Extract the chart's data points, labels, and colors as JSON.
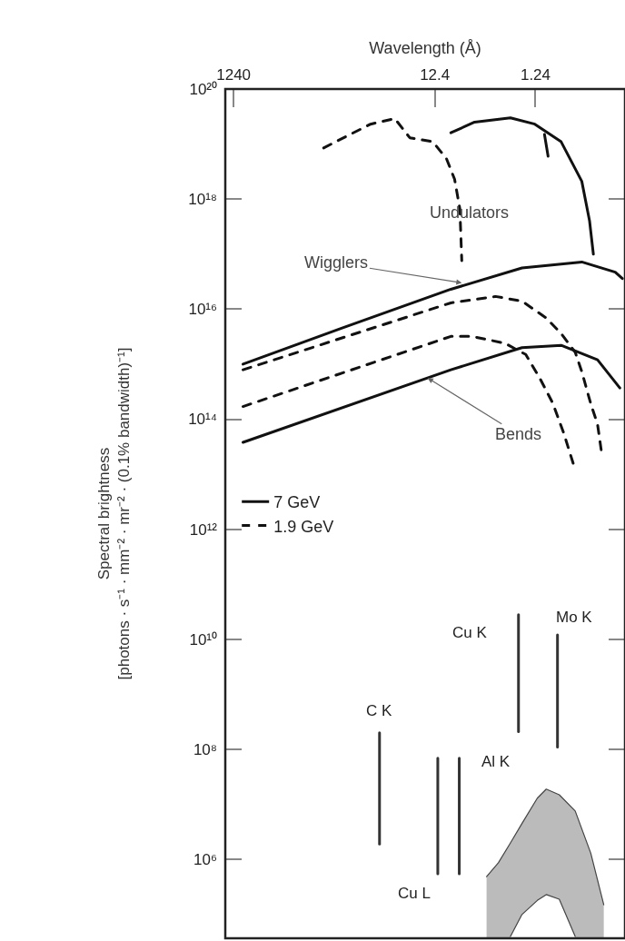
{
  "chart_data": {
    "type": "line",
    "xlabel": "Wavelength (Å)",
    "ylabel": "Spectral brightness\n[photons · s⁻¹ · mm⁻² · mr⁻² · (0.1% bandwidth)⁻¹]",
    "log": "xy",
    "legend": "left",
    "xlim": [
      1500,
      0.16
    ],
    "xticks": [
      1240,
      12.4,
      1.24
    ],
    "ylim": [
      37000.0,
      1e+20
    ],
    "yticks": [
      {
        "value": 1e+20,
        "label": "10²⁰"
      },
      {
        "value": 1e+18,
        "label": "10¹⁸"
      },
      {
        "value": 1e+16,
        "label": "10¹⁶"
      },
      {
        "value": 100000000000000.0,
        "label": "10¹⁴"
      },
      {
        "value": 1000000000000.0,
        "label": "10¹²"
      },
      {
        "value": 10000000000.0,
        "label": "10¹⁰"
      },
      {
        "value": 100000000.0,
        "label": "10⁸"
      },
      {
        "value": 1000000.0,
        "label": "10⁶"
      }
    ],
    "annotations": [
      "Undulators",
      {
        "text": "Wigglers",
        "x": 6.7,
        "y": 3e+16
      },
      {
        "text": "Bends",
        "x": 14.6,
        "y": 560000000000000.0
      }
    ],
    "series": [
      {
        "name": "7 GeV",
        "color": "#111111",
        "line_style": "solid",
        "x": [
          8.6,
          5,
          2.2,
          1.26,
          0.69,
          0.43,
          0.36,
          0.33
        ],
        "values": [
          1.6e+19,
          2.5e+19,
          3e+19,
          2.3e+19,
          1.1e+19,
          2.1e+18,
          4e+17,
          1e+17
        ]
      },
      {
        "color": "#111111",
        "line_style": "solid",
        "x": [
          1.01,
          0.93
        ],
        "values": [
          1.5e+19,
          6e+18
        ]
      },
      {
        "color": "#111111",
        "line_style": "solid",
        "x": [
          1000,
          105,
          8.6,
          1.69,
          0.43,
          0.2,
          0.17
        ],
        "values": [
          1000000000000000.0,
          4500000000000000.0,
          2.3e+16,
          5.6e+16,
          7.2e+16,
          4.7e+16,
          3.6e+16
        ]
      },
      {
        "color": "#111111",
        "line_style": "solid",
        "x": [
          1000,
          8.6,
          1.69,
          0.69,
          0.3,
          0.18
        ],
        "values": [
          38000000000000.0,
          790000000000000.0,
          2000000000000000.0,
          2200000000000000.0,
          1200000000000000.0,
          370000000000000.0
        ]
      },
      {
        "name": "1.9 GeV",
        "color": "#111111",
        "line_style": "dashed",
        "x": [
          158,
          86,
          54,
          31,
          22,
          13,
          9.5,
          7.9,
          7.0,
          6.7
        ],
        "values": [
          8.5e+18,
          1.5e+19,
          2.3e+19,
          2.9e+19,
          1.3e+19,
          1.1e+19,
          5.4e+18,
          2.3e+18,
          6.6e+17,
          7.6e+16
        ]
      },
      {
        "color": "#111111",
        "line_style": "dashed",
        "x": [
          1000,
          8.6,
          3.1,
          1.69,
          0.97,
          0.69,
          0.5,
          0.43,
          0.35,
          0.3,
          0.27
        ],
        "values": [
          790000000000000.0,
          1.3e+16,
          1.7e+16,
          1.4e+16,
          6900000000000000.0,
          3600000000000000.0,
          1650000000000000.0,
          730000000000000.0,
          190000000000000.0,
          81000000000000.0,
          21000000000000.0
        ]
      },
      {
        "color": "#111111",
        "line_style": "dashed",
        "x": [
          1000,
          8.6,
          5.3,
          2.5,
          1.55,
          1.12,
          0.84,
          0.65,
          0.5
        ],
        "values": [
          170000000000000.0,
          3200000000000000.0,
          3200000000000000.0,
          2400000000000000.0,
          1500000000000000.0,
          550000000000000.0,
          200000000000000.0,
          56000000000000.0,
          12000000000000.0
        ]
      },
      {
        "name": "C K",
        "color": "#333333",
        "line_style": "solid",
        "x": [
          44,
          44
        ],
        "values": [
          1900000.0,
          200000000.0
        ]
      },
      {
        "name": "Cu L",
        "color": "#333333",
        "line_style": "solid",
        "x": [
          11.6,
          11.6
        ],
        "values": [
          550000.0,
          69000000.0
        ]
      },
      {
        "name": "Al K",
        "color": "#333333",
        "line_style": "solid",
        "x": [
          7.1,
          7.1
        ],
        "values": [
          550000.0,
          69000000.0
        ]
      },
      {
        "name": "Cu K",
        "color": "#333333",
        "line_style": "solid",
        "x": [
          1.83,
          1.83
        ],
        "values": [
          210000000.0,
          28000000000.0
        ]
      },
      {
        "name": "Mo K",
        "color": "#333333",
        "line_style": "solid",
        "x": [
          0.75,
          0.75
        ],
        "values": [
          110000000.0,
          12000000000.0
        ]
      },
      {
        "type": "area",
        "color": "#bbbbbb",
        "x": [
          3.8,
          2.9,
          2.2,
          1.69,
          1.19,
          0.97,
          0.72,
          0.5,
          0.35,
          0.26
        ],
        "values": [
          490000.0,
          870000.0,
          2000000.0,
          4500000.0,
          13000000.0,
          19000000.0,
          15000000.0,
          7600000.0,
          1300000.0,
          150000.0
        ]
      },
      {
        "type": "area",
        "color": "#ffffff",
        "x": [
          2.2,
          1.69,
          1.19,
          0.97,
          0.72,
          0.5
        ],
        "values": [
          40000.0,
          100000.0,
          180000.0,
          230000.0,
          190000.0,
          40000.0
        ]
      }
    ]
  }
}
